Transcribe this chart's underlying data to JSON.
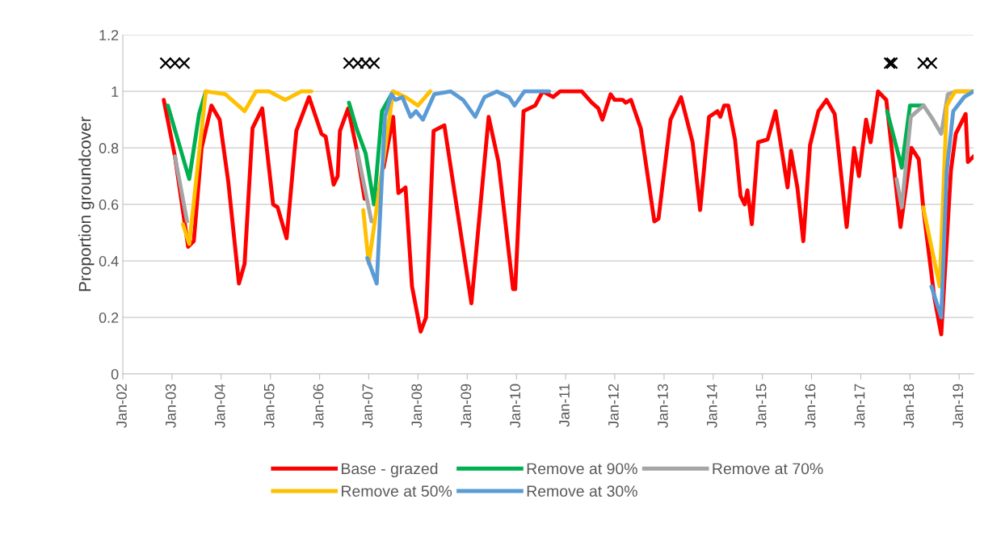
{
  "chart_data": {
    "type": "line",
    "ylabel": "Proportion groundcover",
    "xlim": [
      "2002-01-01",
      "2019-04-18"
    ],
    "xticks": [
      {
        "value": "2002-01-01",
        "label": "Jan-02"
      },
      {
        "value": "2003-01-01",
        "label": "Jan-03"
      },
      {
        "value": "2004-01-01",
        "label": "Jan-04"
      },
      {
        "value": "2005-01-01",
        "label": "Jan-05"
      },
      {
        "value": "2006-01-01",
        "label": "Jan-06"
      },
      {
        "value": "2007-01-01",
        "label": "Jan-07"
      },
      {
        "value": "2008-01-01",
        "label": "Jan-08"
      },
      {
        "value": "2009-01-01",
        "label": "Jan-09"
      },
      {
        "value": "2010-01-01",
        "label": "Jan-10"
      },
      {
        "value": "2011-01-01",
        "label": "Jan-11"
      },
      {
        "value": "2012-01-01",
        "label": "Jan-12"
      },
      {
        "value": "2013-01-01",
        "label": "Jan-13"
      },
      {
        "value": "2014-01-01",
        "label": "Jan-14"
      },
      {
        "value": "2015-01-01",
        "label": "Jan-15"
      },
      {
        "value": "2016-01-01",
        "label": "Jan-16"
      },
      {
        "value": "2017-01-01",
        "label": "Jan-17"
      },
      {
        "value": "2018-01-01",
        "label": "Jan-18"
      },
      {
        "value": "2019-01-01",
        "label": "Jan-19"
      }
    ],
    "ylim": [
      0,
      1.2
    ],
    "yticks": [
      0,
      0.2,
      0.4,
      0.6,
      0.8,
      1,
      1.2
    ],
    "grid": "y",
    "legend": "bottom",
    "line_style": "solid",
    "series": [
      {
        "name": "Base - grazed",
        "color": "#ff0000",
        "x": [
          "2002-11-01",
          "2003-01-23",
          "2003-05-01",
          "2003-06-12",
          "2003-08-09",
          "2003-10-21",
          "2003-12-21",
          "2004-02-23",
          "2004-05-12",
          "2004-06-23",
          "2004-08-21",
          "2004-11-01",
          "2005-01-21",
          "2005-02-23",
          "2005-05-01",
          "2005-07-12",
          "2005-10-15",
          "2006-01-15",
          "2006-02-15",
          "2006-04-15",
          "2006-05-15",
          "2006-06-01",
          "2006-08-01",
          "2006-10-01",
          "2006-12-01",
          "2007-03-01",
          "2007-04-21",
          "2007-07-01",
          "2007-08-09",
          "2007-10-01",
          "2007-11-18",
          "2008-01-21",
          "2008-03-01",
          "2008-04-26",
          "2008-07-15",
          "2009-02-01",
          "2009-06-09",
          "2009-08-21",
          "2009-12-07",
          "2009-12-23",
          "2010-02-23",
          "2010-05-21",
          "2010-07-15",
          "2010-10-01",
          "2010-11-21",
          "2011-05-01",
          "2011-07-15",
          "2011-09-01",
          "2011-10-01",
          "2011-12-01",
          "2012-01-01",
          "2012-03-01",
          "2012-03-23",
          "2012-05-01",
          "2012-07-12",
          "2012-10-21",
          "2012-11-21",
          "2013-02-18",
          "2013-05-07",
          "2013-08-01",
          "2013-09-26",
          "2013-12-01",
          "2014-02-01",
          "2014-02-23",
          "2014-03-23",
          "2014-04-23",
          "2014-06-12",
          "2014-07-23",
          "2014-08-23",
          "2014-09-12",
          "2014-10-15",
          "2014-12-01",
          "2015-02-09",
          "2015-04-09",
          "2015-06-01",
          "2015-07-07",
          "2015-08-01",
          "2015-09-18",
          "2015-11-01",
          "2015-12-21",
          "2016-02-21",
          "2016-04-21",
          "2016-06-21",
          "2016-09-18",
          "2016-11-12",
          "2016-12-18",
          "2017-02-09",
          "2017-03-15",
          "2017-05-09",
          "2017-07-09",
          "2017-10-23",
          "2018-01-12",
          "2018-03-07",
          "2018-04-09",
          "2018-07-01",
          "2018-08-21",
          "2018-11-01",
          "2018-12-07",
          "2019-02-18",
          "2019-03-07",
          "2019-04-18"
        ],
        "values": [
          0.97,
          0.77,
          0.45,
          0.47,
          0.8,
          0.95,
          0.9,
          0.68,
          0.32,
          0.39,
          0.87,
          0.94,
          0.6,
          0.59,
          0.48,
          0.86,
          0.98,
          0.85,
          0.84,
          0.67,
          0.7,
          0.86,
          0.94,
          0.8,
          0.62,
          null,
          0.73,
          0.91,
          0.64,
          0.66,
          0.31,
          0.15,
          0.2,
          0.86,
          0.88,
          0.25,
          0.91,
          0.75,
          0.3,
          0.3,
          0.93,
          0.95,
          1.0,
          0.98,
          1.0,
          1.0,
          0.96,
          0.94,
          0.9,
          0.99,
          0.97,
          0.97,
          0.96,
          0.97,
          0.87,
          0.54,
          0.55,
          0.9,
          0.98,
          0.82,
          0.58,
          0.91,
          0.93,
          0.91,
          0.95,
          0.95,
          0.83,
          0.63,
          0.6,
          0.65,
          0.53,
          0.82,
          0.83,
          0.93,
          0.77,
          0.66,
          0.79,
          0.66,
          0.47,
          0.81,
          0.93,
          0.97,
          0.92,
          0.52,
          0.8,
          0.7,
          0.9,
          0.82,
          1.0,
          0.97,
          0.52,
          0.8,
          0.76,
          0.59,
          0.27,
          0.14,
          0.72,
          0.85,
          0.92,
          0.75,
          0.77
        ]
      },
      {
        "name": "Remove at 90%",
        "color": "#00b050",
        "x": [
          "2002-12-01",
          "2003-05-09",
          "2003-07-21",
          "2003-09-09",
          "2005-01-01",
          "2006-08-07",
          "2006-10-01",
          "2006-12-09",
          "2007-02-09",
          "2007-04-09",
          "2007-07-01",
          "2010-01-01",
          "2017-07-15",
          "2017-11-01",
          "2018-01-01",
          "2018-04-12"
        ],
        "values": [
          0.95,
          0.69,
          0.92,
          1.0,
          null,
          0.96,
          0.87,
          0.78,
          0.6,
          0.93,
          1.0,
          null,
          0.93,
          0.73,
          0.95,
          0.95
        ]
      },
      {
        "name": "Remove at 70%",
        "color": "#a5a5a5",
        "x": [
          "2003-01-23",
          "2003-04-23",
          "2005-01-01",
          "2006-10-07",
          "2007-01-21",
          "2012-01-01",
          "2017-09-23",
          "2017-11-01",
          "2018-01-07",
          "2018-04-12",
          "2018-06-21",
          "2018-08-21",
          "2018-10-09",
          "2018-12-07",
          "2019-04-18"
        ],
        "values": [
          0.77,
          0.54,
          null,
          0.79,
          0.54,
          null,
          0.69,
          0.59,
          0.91,
          0.95,
          0.9,
          0.85,
          0.99,
          1.0,
          1.0
        ]
      },
      {
        "name": "Remove at 50%",
        "color": "#ffc000",
        "x": [
          "2003-03-23",
          "2003-05-09",
          "2003-09-09",
          "2004-02-01",
          "2004-06-23",
          "2004-09-15",
          "2004-12-21",
          "2005-04-21",
          "2005-08-18",
          "2005-11-01",
          "2006-06-01",
          "2006-11-21",
          "2007-01-01",
          "2007-07-01",
          "2007-10-01",
          "2008-01-01",
          "2008-04-01",
          "2012-01-01",
          "2018-04-09",
          "2018-08-09",
          "2018-10-01",
          "2018-12-01",
          "2019-04-18"
        ],
        "values": [
          0.53,
          0.46,
          1.0,
          0.99,
          0.93,
          1.0,
          1.0,
          0.97,
          1.0,
          1.0,
          null,
          0.58,
          0.39,
          1.0,
          0.98,
          0.95,
          1.0,
          null,
          0.59,
          0.31,
          0.95,
          1.0,
          1.0
        ]
      },
      {
        "name": "Remove at 30%",
        "color": "#5b9bd5",
        "x": [
          "2006-12-21",
          "2007-03-01",
          "2007-05-01",
          "2007-06-18",
          "2007-07-18",
          "2007-09-07",
          "2007-11-07",
          "2007-12-18",
          "2008-02-07",
          "2008-05-01",
          "2008-09-01",
          "2008-12-01",
          "2009-03-01",
          "2009-05-09",
          "2009-08-09",
          "2009-11-07",
          "2009-12-18",
          "2010-03-01",
          "2010-09-01",
          "2014-01-01",
          "2018-06-09",
          "2018-08-21",
          "2018-10-01",
          "2018-11-18",
          "2019-02-07",
          "2019-04-18"
        ],
        "values": [
          0.41,
          0.32,
          0.91,
          0.99,
          0.97,
          0.98,
          0.91,
          0.93,
          0.9,
          0.99,
          1.0,
          0.97,
          0.91,
          0.98,
          1.0,
          0.98,
          0.95,
          1.0,
          1.0,
          null,
          0.31,
          0.2,
          0.72,
          0.93,
          0.98,
          1.0
        ]
      },
      {
        "type": "scatter",
        "marker": "cross",
        "color": "#000000",
        "x": [
          "2002-11-15",
          "2003-01-23",
          "2003-04-01",
          "2006-08-07",
          "2006-10-12",
          "2006-12-09",
          "2007-02-09",
          "2017-08-03",
          "2017-08-20",
          "2018-04-09",
          "2018-06-09"
        ],
        "values": [
          1.1,
          1.1,
          1.1,
          1.1,
          1.1,
          1.1,
          1.1,
          1.1,
          1.1,
          1.1,
          1.1
        ]
      }
    ]
  }
}
